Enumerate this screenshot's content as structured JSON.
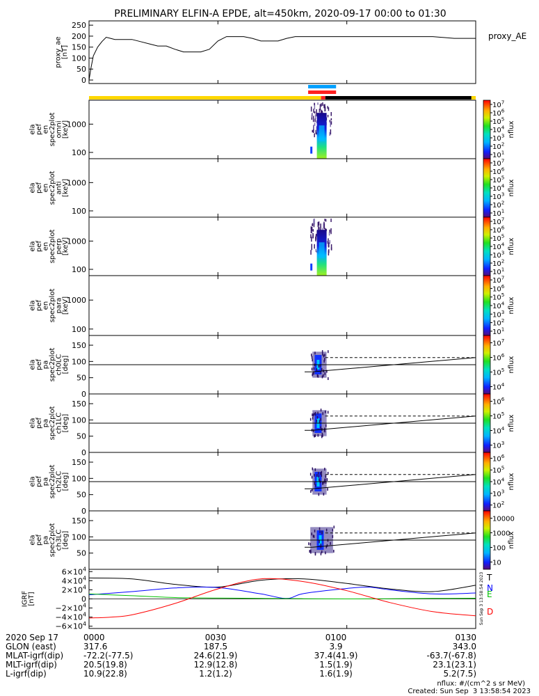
{
  "title": "PRELIMINARY ELFIN-A EPDE, alt=450km, 2020-09-17 00:00 to 01:30",
  "time_axis": {
    "date_label": "2020 Sep 17",
    "ticks": [
      "0000",
      "0030",
      "0100",
      "0130"
    ],
    "tick_minutes": [
      0,
      30,
      60,
      90
    ],
    "range_minutes": [
      0,
      90
    ]
  },
  "chart_data": [
    {
      "type": "line",
      "id": "proxy_ae",
      "ylabel": [
        "proxy_ae",
        "[nT]"
      ],
      "legend": "proxy_AE",
      "ylim": [
        0,
        260
      ],
      "yticks": [
        0,
        50,
        100,
        150,
        200,
        250
      ],
      "x": [
        0,
        0.5,
        1,
        2,
        3,
        4,
        5,
        6,
        8,
        10,
        12,
        14,
        16,
        18,
        20,
        22,
        24,
        26,
        28,
        30,
        32,
        34,
        36,
        38,
        40,
        42,
        44,
        46,
        48,
        50,
        60,
        70,
        80,
        85,
        90
      ],
      "y": [
        0,
        60,
        110,
        150,
        175,
        195,
        190,
        185,
        185,
        185,
        175,
        165,
        155,
        155,
        140,
        128,
        128,
        128,
        140,
        178,
        198,
        198,
        198,
        190,
        178,
        178,
        178,
        190,
        198,
        198,
        198,
        198,
        198,
        190,
        190
      ]
    },
    {
      "type": "table",
      "id": "region_bars",
      "bars": [
        {
          "color": "#00a0ff",
          "x0": 51,
          "x1": 57.5
        },
        {
          "color": "#ff2020",
          "x0": 51,
          "x1": 57.5
        }
      ],
      "status_bar": [
        {
          "color": "#ffd700",
          "x0": 0,
          "x1": 54
        },
        {
          "color": "#ff2020",
          "x0": 54,
          "x1": 55
        },
        {
          "color": "#000000",
          "x0": 55,
          "x1": 89
        },
        {
          "color": "#ffd700",
          "x0": 89,
          "x1": 90
        }
      ]
    },
    {
      "type": "heatmap",
      "id": "en_omni",
      "ylabel": [
        "ela",
        "pef",
        "en",
        "spec2plot",
        "omni",
        "[keV]"
      ],
      "ytick_labels": [
        "1000",
        "100"
      ],
      "ytick_values": [
        1000,
        100
      ],
      "ylim_log": [
        60,
        7000
      ],
      "burst_minutes": [
        51.5,
        55.5
      ],
      "peak_minute": 54,
      "colorbar": {
        "label": "nflux",
        "ticks": [
          "10^1",
          "10^2",
          "10^3",
          "10^4",
          "10^5",
          "10^6",
          "10^7"
        ]
      }
    },
    {
      "type": "heatmap",
      "id": "en_anti",
      "ylabel": [
        "ela",
        "pef",
        "en",
        "spec2plot",
        "anti",
        "[keV]"
      ],
      "ytick_labels": [
        "1000",
        "100"
      ],
      "ytick_values": [
        1000,
        100
      ],
      "ylim_log": [
        60,
        7000
      ],
      "burst_minutes": null,
      "colorbar": {
        "label": "nflux",
        "ticks": [
          "10^1",
          "10^2",
          "10^3",
          "10^4",
          "10^5",
          "10^6",
          "10^7"
        ]
      }
    },
    {
      "type": "heatmap",
      "id": "en_perp",
      "ylabel": [
        "ela",
        "pef",
        "en",
        "spec2plot",
        "perp",
        "[keV]"
      ],
      "ytick_labels": [
        "1000",
        "100"
      ],
      "ytick_values": [
        1000,
        100
      ],
      "ylim_log": [
        60,
        7000
      ],
      "burst_minutes": [
        51.5,
        55.5
      ],
      "peak_minute": 54,
      "colorbar": {
        "label": "nflux",
        "ticks": [
          "10^1",
          "10^2",
          "10^3",
          "10^4",
          "10^5",
          "10^6",
          "10^7"
        ]
      }
    },
    {
      "type": "heatmap",
      "id": "en_para",
      "ylabel": [
        "ela",
        "pef",
        "en",
        "spec2plot",
        "para",
        "[keV]"
      ],
      "ytick_labels": [
        "1000",
        "100"
      ],
      "ytick_values": [
        1000,
        100
      ],
      "ylim_log": [
        60,
        7000
      ],
      "burst_minutes": null,
      "colorbar": {
        "label": "nflux",
        "ticks": [
          "10^1",
          "10^2",
          "10^3",
          "10^4",
          "10^5",
          "10^6",
          "10^7"
        ]
      }
    },
    {
      "type": "heatmap",
      "id": "pa_ch0",
      "ylabel": [
        "ela",
        "pef",
        "pa",
        "spec2plot",
        "ch0LC",
        "[deg]"
      ],
      "ytick_labels": [
        "150",
        "100",
        "50",
        "0"
      ],
      "ytick_values": [
        150,
        100,
        50,
        0
      ],
      "ylim": [
        0,
        180
      ],
      "burst_minutes": [
        52,
        54
      ],
      "hline": 90,
      "loss_cone": {
        "solid_start": [
          52,
          68
        ],
        "solid_end": [
          90,
          112
        ],
        "dashed_start": [
          55,
          112
        ],
        "dashed_end": [
          90,
          112
        ]
      },
      "colorbar": {
        "label": "nflux",
        "ticks": [
          "10^4",
          "10^5",
          "10^6",
          "10^7"
        ]
      }
    },
    {
      "type": "heatmap",
      "id": "pa_ch1",
      "ylabel": [
        "ela",
        "pef",
        "pa",
        "spec2plot",
        "ch1LC",
        "[deg]"
      ],
      "ytick_labels": [
        "150",
        "100",
        "50",
        "0"
      ],
      "ytick_values": [
        150,
        100,
        50,
        0
      ],
      "ylim": [
        0,
        180
      ],
      "burst_minutes": [
        52,
        54
      ],
      "hline": 90,
      "loss_cone": {
        "solid_start": [
          52,
          68
        ],
        "solid_end": [
          90,
          112
        ],
        "dashed_start": [
          55,
          112
        ],
        "dashed_end": [
          90,
          112
        ]
      },
      "colorbar": {
        "label": "nflux",
        "ticks": [
          "10^3",
          "10^4",
          "10^5",
          "10^6"
        ]
      }
    },
    {
      "type": "heatmap",
      "id": "pa_ch2",
      "ylabel": [
        "ela",
        "pef",
        "pa",
        "spec2plot",
        "ch2LC",
        "[deg]"
      ],
      "ytick_labels": [
        "150",
        "100",
        "50",
        "0"
      ],
      "ytick_values": [
        150,
        100,
        50,
        0
      ],
      "ylim": [
        0,
        180
      ],
      "burst_minutes": [
        52,
        54
      ],
      "hline": 90,
      "loss_cone": {
        "solid_start": [
          52,
          68
        ],
        "solid_end": [
          90,
          112
        ],
        "dashed_start": [
          55,
          112
        ],
        "dashed_end": [
          90,
          112
        ]
      },
      "colorbar": {
        "label": "nflux",
        "ticks": [
          "10^2",
          "10^3",
          "10^4",
          "10^5",
          "10^6"
        ]
      }
    },
    {
      "type": "heatmap",
      "id": "pa_ch3",
      "ylabel": [
        "ela",
        "pef",
        "pa",
        "spec2plot",
        "ch3LC",
        "[deg]"
      ],
      "ytick_labels": [
        "150",
        "100",
        "50"
      ],
      "ytick_values": [
        150,
        100,
        50
      ],
      "ylim": [
        0,
        180
      ],
      "burst_minutes": [
        51.5,
        55.5
      ],
      "hline": 90,
      "loss_cone": {
        "solid_start": [
          52,
          68
        ],
        "solid_end": [
          90,
          112
        ],
        "dashed_start": [
          55,
          112
        ],
        "dashed_end": [
          90,
          112
        ]
      },
      "colorbar": {
        "label": "nflux",
        "ticks": [
          "10",
          "100",
          "1000",
          "10000"
        ]
      }
    },
    {
      "type": "line",
      "id": "igrf",
      "ylabel": [
        "IGRF",
        "[nT]"
      ],
      "ylim": [
        -65000,
        65000
      ],
      "ytick_labels": [
        "6×10^4",
        "4×10^4",
        "2×10^4",
        "0",
        "−2×10^4",
        "−4×10^4",
        "−6×10^4"
      ],
      "ytick_values": [
        60000,
        40000,
        20000,
        0,
        -20000,
        -40000,
        -60000
      ],
      "vertical_note": "Sun Sep  3 13:58:54 2023",
      "series": [
        {
          "name": "T",
          "color": "#000000",
          "x": [
            0,
            10,
            20,
            30,
            40,
            50,
            60,
            70,
            80,
            90
          ],
          "y": [
            46000,
            44000,
            32000,
            26000,
            41000,
            44000,
            34000,
            22000,
            16000,
            30000
          ]
        },
        {
          "name": "N",
          "color": "#0000ff",
          "x": [
            0,
            10,
            20,
            30,
            40,
            46,
            50,
            60,
            65,
            70,
            80,
            90
          ],
          "y": [
            9000,
            16000,
            24000,
            25000,
            11000,
            1000,
            12000,
            23000,
            26000,
            20000,
            11000,
            13000
          ]
        },
        {
          "name": "E",
          "color": "#00c000",
          "x": [
            0,
            10,
            20,
            30,
            40,
            50,
            60,
            70,
            80,
            90
          ],
          "y": [
            11000,
            7000,
            3000,
            2000,
            1000,
            500,
            0,
            500,
            1000,
            1500
          ]
        },
        {
          "name": "D",
          "color": "#ff0000",
          "x": [
            0,
            5,
            10,
            20,
            30,
            40,
            50,
            60,
            70,
            80,
            90
          ],
          "y": [
            -42000,
            -40000,
            -35000,
            -10000,
            22000,
            44000,
            38000,
            18000,
            -8000,
            -28000,
            -37000
          ]
        }
      ]
    }
  ],
  "footer": {
    "rows": [
      {
        "label": "2020 Sep 17",
        "values": [
          "0000",
          "0030",
          "0100",
          "0130"
        ]
      },
      {
        "label": "GLON (east)",
        "values": [
          "317.6",
          "187.5",
          "3.9",
          "343.0"
        ]
      },
      {
        "label": "MLAT-igrf(dip)",
        "values": [
          "-72.2(-77.5)",
          "24.6(21.9)",
          "37.4(41.9)",
          "-63.7(-67.8)"
        ]
      },
      {
        "label": "MLT-igrf(dip)",
        "values": [
          "20.5(19.8)",
          "12.9(12.8)",
          "1.5(1.9)",
          "23.1(23.1)"
        ]
      },
      {
        "label": "L-igrf(dip)",
        "values": [
          "10.9(22.8)",
          "1.2(1.2)",
          "1.6(1.9)",
          "5.2(7.5)"
        ]
      }
    ],
    "units_note": "nflux: #/(cm^2 s sr MeV)",
    "created_note": "Created: Sun Sep  3 13:58:54 2023"
  }
}
